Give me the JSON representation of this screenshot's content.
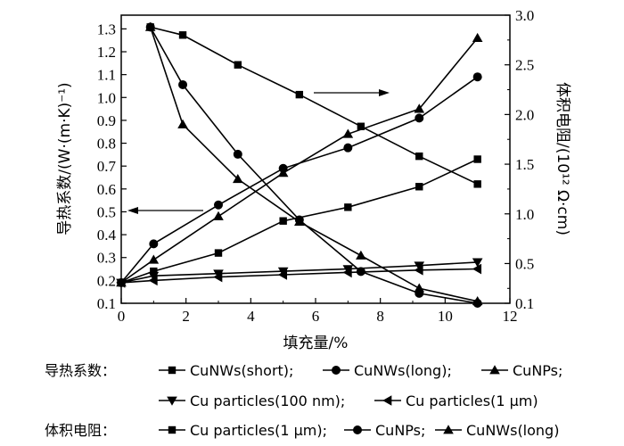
{
  "chart_data": {
    "type": "line",
    "xlabel": "填充量/%",
    "ylabel_left": "导热系数/(W·(m·K)⁻¹)",
    "ylabel_right": "体积电阻/(10¹² Ω·cm)",
    "x_ticks": [
      "0",
      "2",
      "4",
      "6",
      "8",
      "10",
      "12"
    ],
    "y_left_ticks": [
      "0.1",
      "0.2",
      "0.3",
      "0.4",
      "0.5",
      "0.6",
      "0.7",
      "0.8",
      "0.9",
      "1.0",
      "1.1",
      "1.2",
      "1.3"
    ],
    "y_right_ticks": [
      "0.1",
      "0.5",
      "1.0",
      "1.5",
      "2.0",
      "2.5",
      "3.0"
    ],
    "xlim": [
      0,
      12
    ],
    "ylim_left": [
      0.1,
      1.36
    ],
    "ylim_right": [
      0.1,
      3.0
    ],
    "legend_group_thermal": "导热系数：",
    "legend_group_resistance": "体积电阻：",
    "series_thermal": [
      {
        "name": "CuNWs(short)",
        "marker": "square",
        "x": [
          0,
          1,
          3,
          5,
          7,
          9.2,
          11
        ],
        "y": [
          0.19,
          0.24,
          0.32,
          0.46,
          0.52,
          0.61,
          0.73
        ]
      },
      {
        "name": "CuNWs(long)",
        "marker": "circle",
        "x": [
          0,
          1,
          3,
          5,
          7,
          9.2,
          11
        ],
        "y": [
          0.19,
          0.36,
          0.53,
          0.69,
          0.78,
          0.91,
          1.09
        ]
      },
      {
        "name": "CuNPs",
        "marker": "triangle-up",
        "x": [
          0,
          1,
          3,
          5,
          7,
          9.2,
          11
        ],
        "y": [
          0.19,
          0.29,
          0.48,
          0.67,
          0.84,
          0.95,
          1.26
        ]
      },
      {
        "name": "Cu particles(100 nm)",
        "marker": "triangle-down",
        "x": [
          0,
          1,
          3,
          5,
          7,
          9.2,
          11
        ],
        "y": [
          0.19,
          0.22,
          0.23,
          0.24,
          0.25,
          0.265,
          0.28
        ]
      },
      {
        "name": "Cu particles(1 μm)",
        "marker": "triangle-left",
        "x": [
          0,
          1,
          3,
          5,
          7,
          9.2,
          11
        ],
        "y": [
          0.19,
          0.2,
          0.215,
          0.225,
          0.235,
          0.245,
          0.25
        ]
      }
    ],
    "series_resistance": [
      {
        "name": "Cu particles(1 μm)",
        "marker": "square",
        "x": [
          0.9,
          1.9,
          3.6,
          5.5,
          7.4,
          9.2,
          11
        ],
        "y": [
          2.88,
          2.8,
          2.5,
          2.2,
          1.88,
          1.58,
          1.3
        ]
      },
      {
        "name": "CuNPs",
        "marker": "circle",
        "x": [
          0.9,
          1.9,
          3.6,
          5.5,
          7.4,
          9.2,
          11
        ],
        "y": [
          2.88,
          2.3,
          1.6,
          0.94,
          0.42,
          0.2,
          0.1
        ]
      },
      {
        "name": "CuNWs(long)",
        "marker": "triangle-up",
        "x": [
          0.9,
          1.9,
          3.6,
          5.5,
          7.4,
          9.2,
          11
        ],
        "y": [
          2.88,
          1.9,
          1.35,
          0.92,
          0.58,
          0.25,
          0.12
        ]
      }
    ],
    "annotations": [
      "arrow pointing right toward the right axis",
      "arrow pointing left toward the left axis"
    ]
  }
}
